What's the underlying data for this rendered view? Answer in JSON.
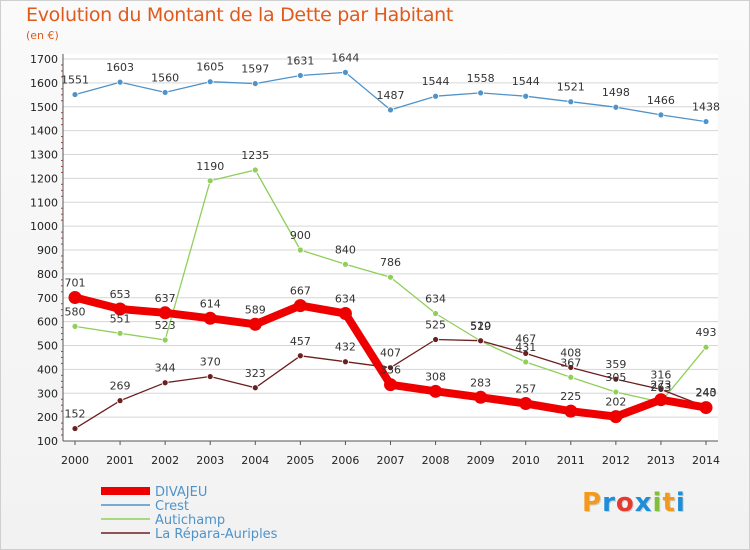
{
  "title": "Evolution du Montant de la Dette par Habitant",
  "subtitle": "(en €)",
  "logo": "Proxiti",
  "colors": {
    "title": "#e05a1c",
    "grid": "#d6d6d6",
    "logo": [
      "#f39a1d",
      "#1e8fd6",
      "#e53b2f",
      "#1e8fd6",
      "#7fbf3a",
      "#f39a1d",
      "#1e8fd6"
    ]
  },
  "chart_data": {
    "type": "line",
    "x": [
      "2000",
      "2001",
      "2002",
      "2003",
      "2004",
      "2005",
      "2006",
      "2007",
      "2008",
      "2009",
      "2010",
      "2011",
      "2012",
      "2013",
      "2014"
    ],
    "ylim": [
      100,
      1700
    ],
    "yticks": [
      100,
      200,
      300,
      400,
      500,
      600,
      700,
      800,
      900,
      1000,
      1100,
      1200,
      1300,
      1400,
      1500,
      1600,
      1700
    ],
    "grid": "horizontal",
    "legend_placement": "bottom-left",
    "series": [
      {
        "name": "Crest",
        "color": "#4f93c9",
        "values": [
          1551,
          1603,
          1560,
          1605,
          1597,
          1631,
          1644,
          1487,
          1544,
          1558,
          1544,
          1521,
          1498,
          1466,
          1438
        ],
        "labels": [
          "1551",
          "1603",
          "1560",
          "1605",
          "1597",
          "1631",
          "1644",
          "1487",
          "1544",
          "1558",
          "1544",
          "1521",
          "1498",
          "1466",
          "1438"
        ]
      },
      {
        "name": "Autichamp",
        "color": "#8fcf5a",
        "values": [
          580,
          551,
          523,
          1190,
          1235,
          900,
          840,
          786,
          634,
          519,
          431,
          367,
          305,
          263,
          493
        ],
        "labels": [
          "580",
          "551",
          "523",
          "1190",
          "1235",
          "900",
          "840",
          "786",
          "634",
          "519",
          "431",
          "367",
          "305",
          "263",
          "493"
        ]
      },
      {
        "name": "La Répara-Auriples",
        "color": "#6b1f1f",
        "values": [
          152,
          269,
          344,
          370,
          323,
          457,
          432,
          407,
          525,
          520,
          467,
          408,
          359,
          316,
          243
        ],
        "labels": [
          "152",
          "269",
          "344",
          "370",
          "323",
          "457",
          "432",
          "407",
          "525",
          "520",
          "467",
          "408",
          "359",
          "316",
          "243"
        ]
      },
      {
        "name": "DIVAJEU",
        "color": "#ee0000",
        "values": [
          701,
          653,
          637,
          614,
          589,
          667,
          634,
          336,
          308,
          283,
          257,
          225,
          202,
          273,
          240
        ],
        "labels": [
          "701",
          "653",
          "637",
          "614",
          "589",
          "667",
          "634",
          "336",
          "308",
          "283",
          "257",
          "225",
          "202",
          "273",
          "240"
        ]
      }
    ],
    "legend": [
      "DIVAJEU",
      "Crest",
      "Autichamp",
      "La Répara-Auriples"
    ]
  }
}
